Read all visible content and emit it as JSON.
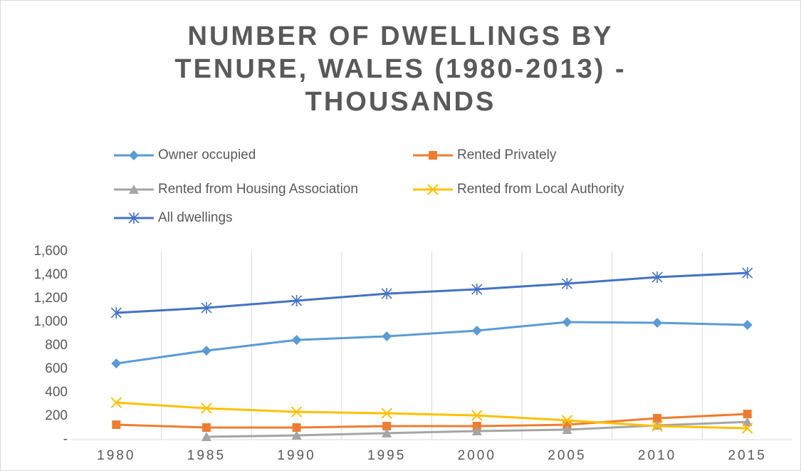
{
  "chart_data": {
    "type": "line",
    "title": "NUMBER OF DWELLINGS BY TENURE, WALES (1980-2013) - THOUSANDS",
    "categories": [
      "1980",
      "1985",
      "1990",
      "1995",
      "2000",
      "2005",
      "2010",
      "2015"
    ],
    "series": [
      {
        "name": "Owner occupied",
        "color": "#5b9bd5",
        "marker": "diamond",
        "values": [
          648,
          757,
          848,
          879,
          927,
          1000,
          994,
          976
        ]
      },
      {
        "name": "Rented Privately",
        "color": "#ed7d31",
        "marker": "square",
        "values": [
          127,
          103,
          103,
          115,
          115,
          127,
          182,
          218
        ]
      },
      {
        "name": "Rented from Housing Association",
        "color": "#a5a5a5",
        "marker": "triangle",
        "values": [
          null,
          24,
          36,
          55,
          73,
          85,
          121,
          151
        ]
      },
      {
        "name": "Rented from Local Authority",
        "color": "#ffc000",
        "marker": "x",
        "values": [
          315,
          267,
          236,
          224,
          206,
          164,
          115,
          97
        ]
      },
      {
        "name": "All dwellings",
        "color": "#4472c4",
        "marker": "star",
        "values": [
          1079,
          1121,
          1182,
          1242,
          1279,
          1327,
          1382,
          1418
        ]
      }
    ],
    "ylim": [
      0,
      1600
    ],
    "yticks": [
      {
        "value": 0,
        "label": "-"
      },
      200,
      400,
      600,
      800,
      {
        "value": 1000,
        "label": "1,000"
      },
      {
        "value": 1200,
        "label": "1,200"
      },
      {
        "value": 1400,
        "label": "1,400"
      },
      {
        "value": 1600,
        "label": "1,600"
      }
    ],
    "grid": "x"
  }
}
